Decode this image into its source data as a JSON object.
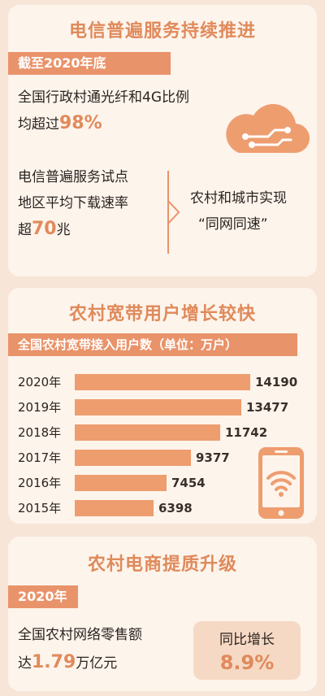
{
  "section1": {
    "title": "电信普遍服务持续推进",
    "subtitle": "截至2020年底",
    "stat1_line1": "全国行政村通光纤和4G比例",
    "stat1_line2_prefix": "均超过",
    "stat1_value": "98%",
    "stat2_line1": "电信普遍服务试点",
    "stat2_line2": "地区平均下载速率",
    "stat2_line3_prefix": "超",
    "stat2_value": "70",
    "stat2_line3_suffix": "兆",
    "right_line1": "农村和城市实现",
    "right_line2": "“同网同速”"
  },
  "section2": {
    "title": "农村宽带用户增长较快",
    "subtitle": "全国农村宽带接入用户数（单位：万户）"
  },
  "chart_data": {
    "type": "bar",
    "orientation": "horizontal",
    "title": "全国农村宽带接入用户数（单位：万户）",
    "categories": [
      "2020年",
      "2019年",
      "2018年",
      "2017年",
      "2016年",
      "2015年"
    ],
    "values": [
      14190,
      13477,
      11742,
      9377,
      7454,
      6398
    ],
    "value_labels": [
      "14190",
      "13477",
      "11742",
      "9377",
      "7454",
      "6398"
    ],
    "color": "#ee9d6f"
  },
  "section3": {
    "title": "农村电商提质升级",
    "subtitle": "2020年",
    "line1": "全国农村网络零售额",
    "line2_prefix": "达",
    "value": "1.79",
    "line2_suffix": "万亿元",
    "yoy_label": "同比增长",
    "yoy_value": "8.9%"
  },
  "colors": {
    "accent": "#e08a5b",
    "bar": "#ee9d6f",
    "panel": "#fdf4ec",
    "background": "#f7e6d8"
  },
  "icons": [
    "cloud-network-icon",
    "smartphone-wifi-icon",
    "chevron-right-icon"
  ]
}
